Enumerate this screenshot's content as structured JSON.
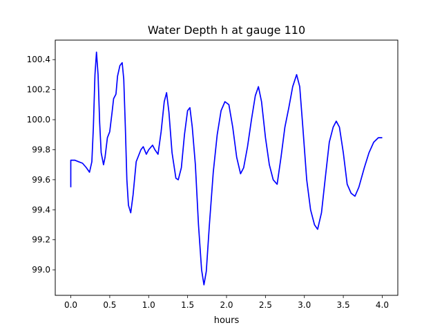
{
  "chart_data": {
    "type": "line",
    "title": "Water Depth h at gauge 110",
    "xlabel": "hours",
    "ylabel": "",
    "xlim": [
      -0.2,
      4.2
    ],
    "ylim": [
      98.83,
      100.53
    ],
    "xticks": [
      {
        "value": 0.0,
        "label": "0.0"
      },
      {
        "value": 0.5,
        "label": "0.5"
      },
      {
        "value": 1.0,
        "label": "1.0"
      },
      {
        "value": 1.5,
        "label": "1.5"
      },
      {
        "value": 2.0,
        "label": "2.0"
      },
      {
        "value": 2.5,
        "label": "2.5"
      },
      {
        "value": 3.0,
        "label": "3.0"
      },
      {
        "value": 3.5,
        "label": "3.5"
      },
      {
        "value": 4.0,
        "label": "4.0"
      }
    ],
    "yticks": [
      {
        "value": 99.0,
        "label": "99.0"
      },
      {
        "value": 99.2,
        "label": "99.2"
      },
      {
        "value": 99.4,
        "label": "99.4"
      },
      {
        "value": 99.6,
        "label": "99.6"
      },
      {
        "value": 99.8,
        "label": "99.8"
      },
      {
        "value": 100.0,
        "label": "100.0"
      },
      {
        "value": 100.2,
        "label": "100.2"
      },
      {
        "value": 100.4,
        "label": "100.4"
      }
    ],
    "grid": false,
    "legend": "none",
    "series": [
      {
        "color": "#0000ff",
        "points": [
          [
            0.0,
            99.55
          ],
          [
            0.0,
            99.73
          ],
          [
            0.05,
            99.73
          ],
          [
            0.1,
            99.72
          ],
          [
            0.15,
            99.71
          ],
          [
            0.2,
            99.68
          ],
          [
            0.24,
            99.65
          ],
          [
            0.27,
            99.72
          ],
          [
            0.29,
            99.95
          ],
          [
            0.31,
            100.3
          ],
          [
            0.33,
            100.45
          ],
          [
            0.35,
            100.3
          ],
          [
            0.37,
            99.98
          ],
          [
            0.39,
            99.78
          ],
          [
            0.42,
            99.7
          ],
          [
            0.44,
            99.75
          ],
          [
            0.47,
            99.88
          ],
          [
            0.5,
            99.92
          ],
          [
            0.53,
            100.05
          ],
          [
            0.55,
            100.14
          ],
          [
            0.58,
            100.17
          ],
          [
            0.6,
            100.29
          ],
          [
            0.63,
            100.36
          ],
          [
            0.66,
            100.38
          ],
          [
            0.68,
            100.27
          ],
          [
            0.7,
            99.95
          ],
          [
            0.72,
            99.6
          ],
          [
            0.74,
            99.43
          ],
          [
            0.77,
            99.38
          ],
          [
            0.8,
            99.5
          ],
          [
            0.84,
            99.72
          ],
          [
            0.9,
            99.8
          ],
          [
            0.93,
            99.82
          ],
          [
            0.97,
            99.77
          ],
          [
            1.0,
            99.8
          ],
          [
            1.05,
            99.83
          ],
          [
            1.08,
            99.8
          ],
          [
            1.12,
            99.77
          ],
          [
            1.16,
            99.92
          ],
          [
            1.2,
            100.12
          ],
          [
            1.23,
            100.18
          ],
          [
            1.26,
            100.05
          ],
          [
            1.3,
            99.78
          ],
          [
            1.35,
            99.61
          ],
          [
            1.38,
            99.6
          ],
          [
            1.42,
            99.68
          ],
          [
            1.46,
            99.9
          ],
          [
            1.5,
            100.06
          ],
          [
            1.53,
            100.08
          ],
          [
            1.56,
            99.95
          ],
          [
            1.6,
            99.7
          ],
          [
            1.64,
            99.3
          ],
          [
            1.68,
            99.0
          ],
          [
            1.71,
            98.9
          ],
          [
            1.74,
            98.99
          ],
          [
            1.78,
            99.3
          ],
          [
            1.83,
            99.65
          ],
          [
            1.88,
            99.9
          ],
          [
            1.93,
            100.06
          ],
          [
            1.98,
            100.12
          ],
          [
            2.03,
            100.1
          ],
          [
            2.08,
            99.95
          ],
          [
            2.13,
            99.75
          ],
          [
            2.18,
            99.64
          ],
          [
            2.22,
            99.68
          ],
          [
            2.27,
            99.82
          ],
          [
            2.32,
            100.0
          ],
          [
            2.37,
            100.16
          ],
          [
            2.41,
            100.22
          ],
          [
            2.45,
            100.12
          ],
          [
            2.5,
            99.88
          ],
          [
            2.55,
            99.7
          ],
          [
            2.6,
            99.6
          ],
          [
            2.65,
            99.57
          ],
          [
            2.7,
            99.75
          ],
          [
            2.75,
            99.95
          ],
          [
            2.8,
            100.08
          ],
          [
            2.85,
            100.22
          ],
          [
            2.9,
            100.3
          ],
          [
            2.94,
            100.22
          ],
          [
            2.98,
            99.95
          ],
          [
            3.03,
            99.6
          ],
          [
            3.08,
            99.4
          ],
          [
            3.13,
            99.3
          ],
          [
            3.17,
            99.27
          ],
          [
            3.22,
            99.38
          ],
          [
            3.27,
            99.62
          ],
          [
            3.32,
            99.85
          ],
          [
            3.37,
            99.95
          ],
          [
            3.41,
            99.99
          ],
          [
            3.45,
            99.95
          ],
          [
            3.5,
            99.78
          ],
          [
            3.55,
            99.57
          ],
          [
            3.6,
            99.51
          ],
          [
            3.65,
            99.49
          ],
          [
            3.7,
            99.55
          ],
          [
            3.77,
            99.68
          ],
          [
            3.83,
            99.78
          ],
          [
            3.89,
            99.85
          ],
          [
            3.95,
            99.88
          ],
          [
            4.0,
            99.88
          ]
        ]
      }
    ]
  }
}
